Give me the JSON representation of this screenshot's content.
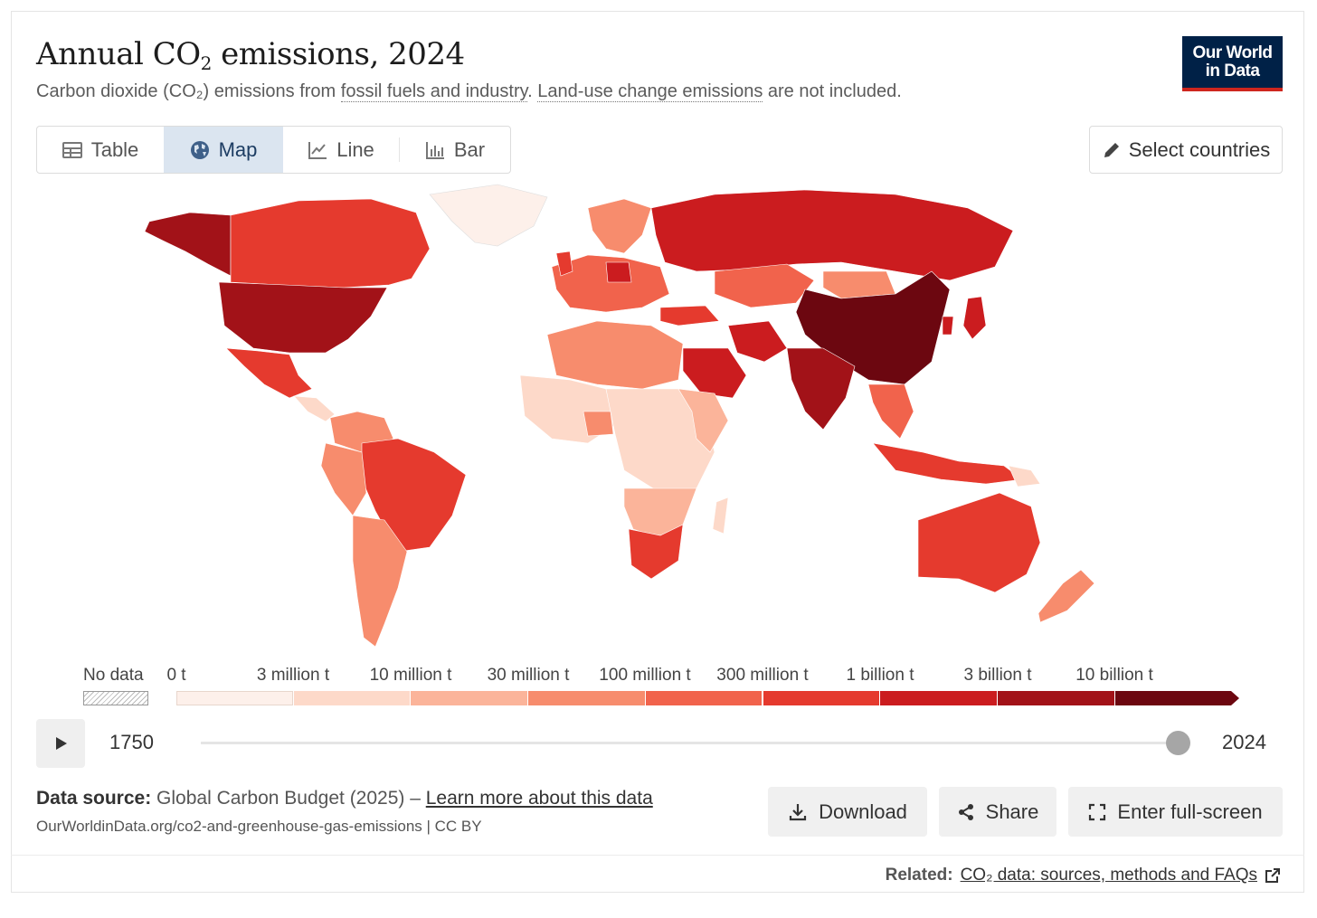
{
  "header": {
    "title_main": "Annual CO",
    "title_sub": "2",
    "title_rest": " emissions, 2024",
    "subtitle_a": "Carbon dioxide (CO₂) emissions from ",
    "subtitle_link1": "fossil fuels and industry",
    "subtitle_b": ". ",
    "subtitle_link2": "Land-use change emissions",
    "subtitle_c": " are not included.",
    "logo_line1": "Our World",
    "logo_line2": "in Data"
  },
  "tabs": [
    {
      "label": "Table",
      "icon": "table-icon",
      "active": false
    },
    {
      "label": "Map",
      "icon": "globe-icon",
      "active": true
    },
    {
      "label": "Line",
      "icon": "line-chart-icon",
      "active": false
    },
    {
      "label": "Bar",
      "icon": "bar-chart-icon",
      "active": false
    }
  ],
  "select_countries": {
    "label": "Select countries",
    "icon": "pencil-icon"
  },
  "legend": {
    "no_data_label": "No data",
    "ticks": [
      "0 t",
      "3 million t",
      "10 million t",
      "30 million t",
      "100 million t",
      "300 million t",
      "1 billion t",
      "3 billion t",
      "10 billion t"
    ],
    "colors": [
      "#fdf0ea",
      "#fdd9c9",
      "#fbb49a",
      "#f78c6d",
      "#f1634c",
      "#e53a2e",
      "#cb1c1f",
      "#a21218",
      "#6c0710"
    ]
  },
  "timeline": {
    "start_year": "1750",
    "end_year": "2024",
    "current_year_fraction": 1.0
  },
  "footer": {
    "source_label": "Data source:",
    "source_text": " Global Carbon Budget (2025) – ",
    "source_link": "Learn more about this data",
    "source_url": "OurWorldinData.org/co2-and-greenhouse-gas-emissions | CC BY",
    "download": "Download",
    "share": "Share",
    "fullscreen": "Enter full-screen",
    "related_label": "Related:",
    "related_link": "CO₂ data: sources, methods and FAQs"
  }
}
